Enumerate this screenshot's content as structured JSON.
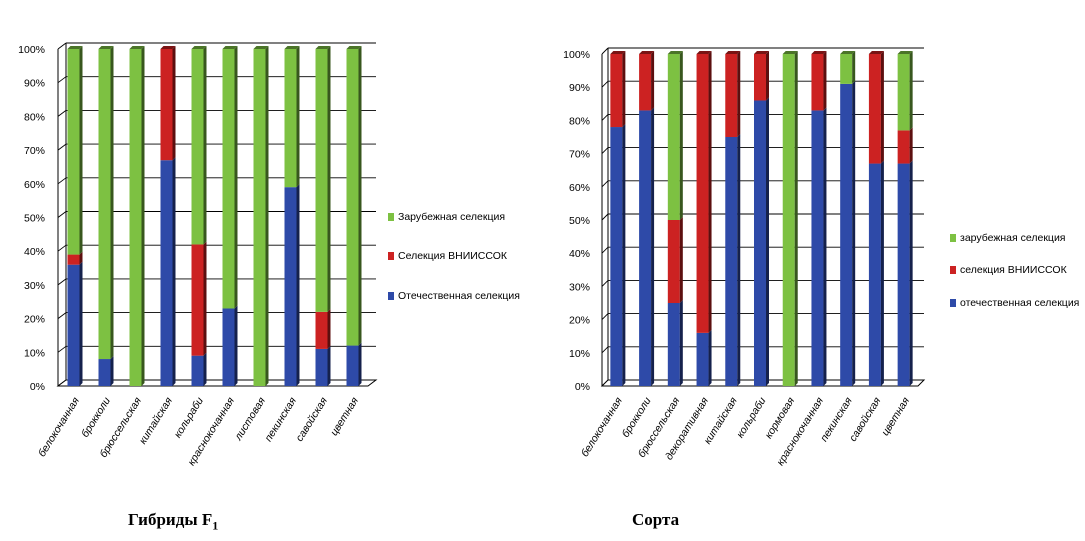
{
  "chart_data": [
    {
      "type": "bar",
      "stacked": "percent",
      "title": "",
      "caption": "Гибриды F",
      "caption_subscript": "1",
      "xlabel": "",
      "ylabel": "",
      "ylim": [
        0,
        100
      ],
      "y_ticks": [
        "0%",
        "10%",
        "20%",
        "30%",
        "40%",
        "50%",
        "60%",
        "70%",
        "80%",
        "90%",
        "100%"
      ],
      "grid": true,
      "legend_position": "right",
      "categories": [
        "белокочанная",
        "брокколи",
        "брюссельская",
        "китайская",
        "кольраби",
        "краснокочанная",
        "листовая",
        "пекинская",
        "савойская",
        "цветная"
      ],
      "series": [
        {
          "name": "Отечественная селекция",
          "color": "#2e4aa8",
          "values": [
            36,
            8,
            0,
            67,
            9,
            23,
            0,
            59,
            11,
            12
          ]
        },
        {
          "name": "Селекция ВНИИССОК",
          "color": "#cc2222",
          "values": [
            3,
            0,
            0,
            33,
            33,
            0,
            0,
            0,
            11,
            0
          ]
        },
        {
          "name": "Зарубежная селекция",
          "color": "#7dc142",
          "values": [
            61,
            92,
            100,
            0,
            58,
            77,
            100,
            41,
            78,
            88
          ]
        }
      ]
    },
    {
      "type": "bar",
      "stacked": "percent",
      "title": "",
      "caption": "Сорта",
      "caption_subscript": "",
      "xlabel": "",
      "ylabel": "",
      "ylim": [
        0,
        100
      ],
      "y_ticks": [
        "0%",
        "10%",
        "20%",
        "30%",
        "40%",
        "50%",
        "60%",
        "70%",
        "80%",
        "90%",
        "100%"
      ],
      "grid": true,
      "legend_position": "right",
      "categories": [
        "белокочанная",
        "брокколи",
        "брюссельская",
        "декоративная",
        "китайская",
        "кольраби",
        "кормовая",
        "краснокочанная",
        "пекинская",
        "савойская",
        "цветная"
      ],
      "series": [
        {
          "name": "отечественная селекция",
          "color": "#2e4aa8",
          "values": [
            78,
            83,
            25,
            16,
            75,
            86,
            0,
            83,
            91,
            67,
            67
          ]
        },
        {
          "name": "селекция ВНИИССОК",
          "color": "#cc2222",
          "values": [
            22,
            17,
            25,
            84,
            25,
            14,
            0,
            17,
            0,
            33,
            10
          ]
        },
        {
          "name": "зарубежная селекция",
          "color": "#7dc142",
          "values": [
            0,
            0,
            50,
            0,
            0,
            0,
            100,
            0,
            9,
            0,
            23
          ]
        }
      ]
    }
  ]
}
